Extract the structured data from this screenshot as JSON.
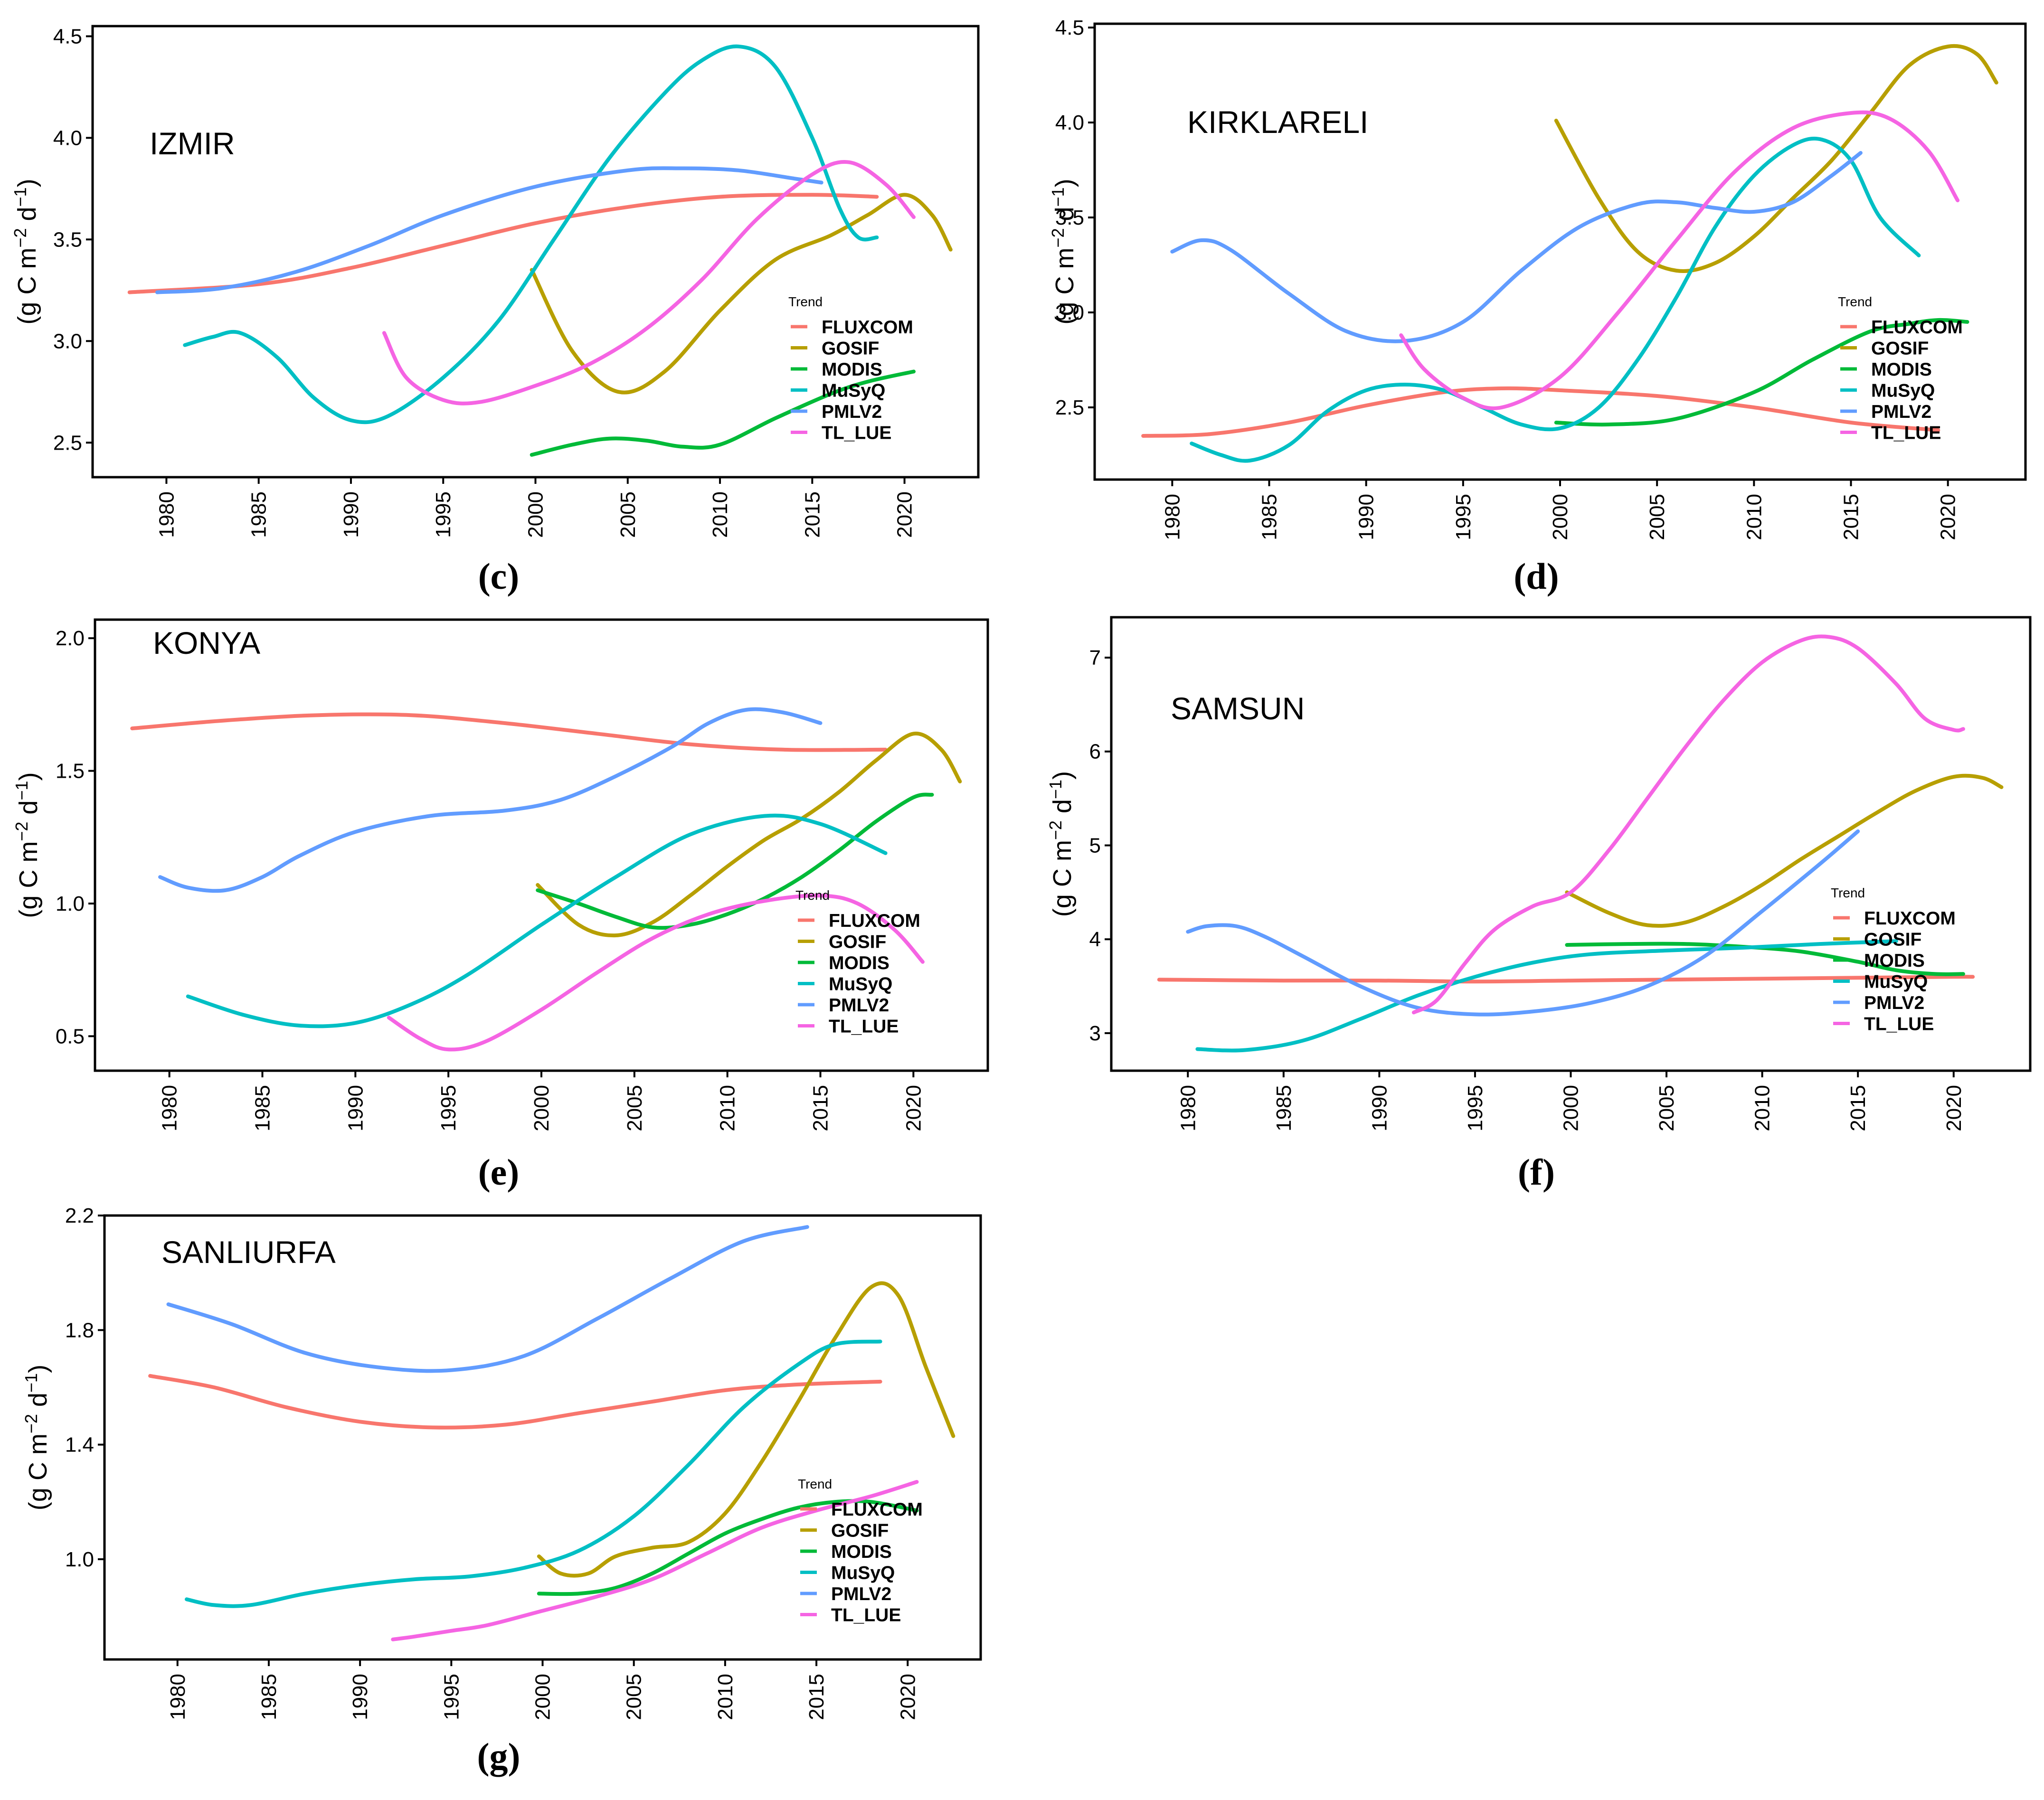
{
  "figure": {
    "ylabel_prefix": "(g C m",
    "ylabel_sup1": "−2",
    "ylabel_mid": " d",
    "ylabel_sup2": "−1",
    "ylabel_suffix": ")",
    "legend_title": "Trend"
  },
  "series_colors": {
    "FLUXCOM": "#F8766D",
    "GOSIF": "#B79F00",
    "MODIS": "#00BA38",
    "MuSyQ": "#00BFC4",
    "PMLV2": "#619CFF",
    "TL_LUE": "#F564E3"
  },
  "chart_data": [
    {
      "type": "line",
      "caption": "(c)",
      "title": "IZMIR",
      "xlim": [
        1976,
        2024
      ],
      "ylim": [
        2.33,
        4.55
      ],
      "xticks": [
        "1980",
        "1985",
        "1990",
        "1995",
        "2000",
        "2005",
        "2010",
        "2015",
        "2020"
      ],
      "yticks": [
        "2.5",
        "3.0",
        "3.5",
        "4.0",
        "4.5"
      ],
      "legend_position": "right-middle",
      "series": [
        {
          "name": "FLUXCOM",
          "x": [
            1978,
            1985,
            1990,
            1995,
            2000,
            2005,
            2010,
            2015,
            2018.5
          ],
          "y": [
            3.24,
            3.28,
            3.36,
            3.47,
            3.58,
            3.66,
            3.71,
            3.72,
            3.71
          ]
        },
        {
          "name": "GOSIF",
          "x": [
            1999.8,
            2002,
            2004.5,
            2007,
            2010,
            2013,
            2016,
            2018,
            2020,
            2021.5,
            2022.5
          ],
          "y": [
            3.35,
            2.95,
            2.75,
            2.85,
            3.15,
            3.4,
            3.52,
            3.62,
            3.72,
            3.62,
            3.45
          ]
        },
        {
          "name": "MODIS",
          "x": [
            1999.8,
            2002,
            2004,
            2006,
            2008,
            2010,
            2013,
            2016,
            2018,
            2020.5
          ],
          "y": [
            2.44,
            2.49,
            2.52,
            2.51,
            2.48,
            2.49,
            2.62,
            2.74,
            2.8,
            2.85
          ]
        },
        {
          "name": "MuSyQ",
          "x": [
            1981,
            1982.5,
            1984,
            1986,
            1988,
            1990,
            1992,
            1995,
            1998,
            2001,
            2004,
            2007,
            2009,
            2011,
            2013,
            2015,
            2016.5,
            2017.5,
            2018.5
          ],
          "y": [
            2.98,
            3.02,
            3.04,
            2.92,
            2.72,
            2.61,
            2.63,
            2.82,
            3.1,
            3.5,
            3.9,
            4.22,
            4.38,
            4.45,
            4.35,
            4.0,
            3.65,
            3.51,
            3.51
          ]
        },
        {
          "name": "PMLV2",
          "x": [
            1979.5,
            1983,
            1987,
            1991,
            1995,
            2000,
            2005,
            2008,
            2011,
            2014,
            2015.5
          ],
          "y": [
            3.24,
            3.26,
            3.34,
            3.47,
            3.62,
            3.76,
            3.84,
            3.85,
            3.84,
            3.8,
            3.78
          ]
        },
        {
          "name": "TL_LUE",
          "x": [
            1991.8,
            1993,
            1995,
            1997,
            2000,
            2003,
            2006,
            2009,
            2012,
            2015,
            2017,
            2019,
            2020.5
          ],
          "y": [
            3.04,
            2.82,
            2.71,
            2.7,
            2.78,
            2.89,
            3.06,
            3.3,
            3.6,
            3.82,
            3.88,
            3.77,
            3.61
          ]
        }
      ]
    },
    {
      "type": "line",
      "caption": "(d)",
      "title": "KIRKLARELI",
      "xlim": [
        1976,
        2024
      ],
      "ylim": [
        2.12,
        4.52
      ],
      "xticks": [
        "1980",
        "1985",
        "1990",
        "1995",
        "2000",
        "2005",
        "2010",
        "2015",
        "2020"
      ],
      "yticks": [
        "2.5",
        "3.0",
        "3.5",
        "4.0",
        "4.5"
      ],
      "legend_position": "right-middle",
      "series": [
        {
          "name": "FLUXCOM",
          "x": [
            1978.5,
            1982,
            1986,
            1990,
            1994,
            1997,
            2000,
            2005,
            2010,
            2015,
            2019.5
          ],
          "y": [
            2.35,
            2.36,
            2.42,
            2.51,
            2.58,
            2.6,
            2.59,
            2.56,
            2.5,
            2.42,
            2.38
          ]
        },
        {
          "name": "GOSIF",
          "x": [
            1999.8,
            2002,
            2004,
            2006,
            2008,
            2010,
            2012,
            2014,
            2016,
            2018,
            2020,
            2021.5,
            2022.5
          ],
          "y": [
            4.01,
            3.6,
            3.32,
            3.22,
            3.26,
            3.4,
            3.6,
            3.8,
            4.05,
            4.3,
            4.4,
            4.36,
            4.21
          ]
        },
        {
          "name": "MODIS",
          "x": [
            1999.8,
            2002.5,
            2006,
            2010,
            2013,
            2016,
            2018,
            2019.5,
            2021
          ],
          "y": [
            2.42,
            2.41,
            2.44,
            2.58,
            2.75,
            2.9,
            2.94,
            2.96,
            2.95
          ]
        },
        {
          "name": "MuSyQ",
          "x": [
            1981,
            1982.5,
            1984,
            1986,
            1988,
            1990,
            1992,
            1994,
            1996,
            1998,
            2000,
            2002,
            2004,
            2006,
            2008,
            2010,
            2012,
            2013.5,
            2015,
            2016.5,
            2018.5
          ],
          "y": [
            2.31,
            2.25,
            2.22,
            2.3,
            2.48,
            2.59,
            2.62,
            2.59,
            2.5,
            2.41,
            2.39,
            2.5,
            2.75,
            3.08,
            3.45,
            3.72,
            3.88,
            3.91,
            3.8,
            3.5,
            3.3
          ]
        },
        {
          "name": "PMLV2",
          "x": [
            1980,
            1981.5,
            1983,
            1986,
            1989,
            1992,
            1995,
            1998,
            2001,
            2004,
            2006,
            2008,
            2010,
            2012,
            2014,
            2015.5
          ],
          "y": [
            3.32,
            3.38,
            3.33,
            3.1,
            2.9,
            2.85,
            2.95,
            3.22,
            3.45,
            3.57,
            3.58,
            3.55,
            3.53,
            3.58,
            3.72,
            3.84
          ]
        },
        {
          "name": "TL_LUE",
          "x": [
            1991.8,
            1993,
            1995,
            1997,
            2000,
            2003,
            2006,
            2009,
            2012,
            2015,
            2017,
            2019,
            2020.5
          ],
          "y": [
            2.88,
            2.7,
            2.55,
            2.5,
            2.66,
            3.0,
            3.38,
            3.74,
            3.97,
            4.05,
            4.02,
            3.85,
            3.59
          ]
        }
      ]
    },
    {
      "type": "line",
      "caption": "(e)",
      "title": "KONYA",
      "xlim": [
        1976,
        2024
      ],
      "ylim": [
        0.37,
        2.07
      ],
      "xticks": [
        "1980",
        "1985",
        "1990",
        "1995",
        "2000",
        "2005",
        "2010",
        "2015",
        "2020"
      ],
      "yticks": [
        "0.5",
        "1.0",
        "1.5",
        "2.0"
      ],
      "legend_position": "right-middle",
      "series": [
        {
          "name": "FLUXCOM",
          "x": [
            1978,
            1983,
            1988,
            1993,
            1998,
            2003,
            2008,
            2013,
            2018.5
          ],
          "y": [
            1.66,
            1.69,
            1.71,
            1.71,
            1.68,
            1.64,
            1.6,
            1.58,
            1.58
          ]
        },
        {
          "name": "GOSIF",
          "x": [
            1999.8,
            2002,
            2004,
            2006,
            2008,
            2010,
            2012,
            2014,
            2016,
            2018,
            2020,
            2021.5,
            2022.5
          ],
          "y": [
            1.07,
            0.92,
            0.88,
            0.93,
            1.03,
            1.14,
            1.24,
            1.32,
            1.42,
            1.54,
            1.64,
            1.58,
            1.46
          ]
        },
        {
          "name": "MODIS",
          "x": [
            1999.8,
            2002,
            2004,
            2006,
            2008,
            2010,
            2012,
            2014,
            2016,
            2018,
            2020,
            2021
          ],
          "y": [
            1.05,
            1.0,
            0.95,
            0.91,
            0.92,
            0.96,
            1.02,
            1.1,
            1.2,
            1.31,
            1.4,
            1.41
          ]
        },
        {
          "name": "MuSyQ",
          "x": [
            1981,
            1984,
            1987,
            1990,
            1993,
            1996,
            2000,
            2004,
            2008,
            2012,
            2015,
            2018.5
          ],
          "y": [
            0.65,
            0.58,
            0.54,
            0.55,
            0.62,
            0.73,
            0.92,
            1.1,
            1.26,
            1.33,
            1.3,
            1.19
          ]
        },
        {
          "name": "PMLV2",
          "x": [
            1979.5,
            1981,
            1983,
            1985,
            1987,
            1990,
            1994,
            1998,
            2001,
            2004,
            2007,
            2009,
            2011,
            2013,
            2015
          ],
          "y": [
            1.1,
            1.06,
            1.05,
            1.1,
            1.18,
            1.27,
            1.33,
            1.35,
            1.39,
            1.48,
            1.59,
            1.68,
            1.73,
            1.72,
            1.68
          ]
        },
        {
          "name": "TL_LUE",
          "x": [
            1991.8,
            1993.5,
            1995,
            1997,
            2000,
            2003,
            2006,
            2009,
            2012,
            2015,
            2017,
            2019,
            2020.5
          ],
          "y": [
            0.57,
            0.49,
            0.45,
            0.48,
            0.6,
            0.74,
            0.87,
            0.96,
            1.01,
            1.03,
            1.0,
            0.9,
            0.78
          ]
        }
      ]
    },
    {
      "type": "line",
      "caption": "(f)",
      "title": "SAMSUN",
      "xlim": [
        1976,
        2024
      ],
      "ylim": [
        2.6,
        7.43
      ],
      "xticks": [
        "1980",
        "1985",
        "1990",
        "1995",
        "2000",
        "2005",
        "2010",
        "2015",
        "2020"
      ],
      "yticks": [
        "3",
        "4",
        "5",
        "6",
        "7"
      ],
      "legend_position": "right-middle",
      "series": [
        {
          "name": "FLUXCOM",
          "x": [
            1978.5,
            1985,
            1990,
            1995,
            2000,
            2005,
            2010,
            2015,
            2020,
            2021
          ],
          "y": [
            3.57,
            3.56,
            3.56,
            3.55,
            3.56,
            3.57,
            3.58,
            3.59,
            3.6,
            3.6
          ]
        },
        {
          "name": "GOSIF",
          "x": [
            1999.8,
            2002,
            2004,
            2006,
            2008,
            2010,
            2012,
            2014,
            2016,
            2018,
            2020,
            2021.5,
            2022.5
          ],
          "y": [
            4.5,
            4.28,
            4.15,
            4.18,
            4.35,
            4.58,
            4.85,
            5.1,
            5.35,
            5.58,
            5.73,
            5.72,
            5.62
          ]
        },
        {
          "name": "MODIS",
          "x": [
            1999.8,
            2003,
            2006,
            2009,
            2012,
            2015,
            2017,
            2019,
            2020.5
          ],
          "y": [
            3.94,
            3.95,
            3.95,
            3.92,
            3.87,
            3.76,
            3.67,
            3.63,
            3.63
          ]
        },
        {
          "name": "MuSyQ",
          "x": [
            1980.5,
            1983,
            1986,
            1989,
            1992,
            1995,
            1998,
            2001,
            2005,
            2009,
            2013,
            2017
          ],
          "y": [
            2.83,
            2.82,
            2.92,
            3.15,
            3.4,
            3.6,
            3.75,
            3.84,
            3.88,
            3.91,
            3.95,
            3.98
          ]
        },
        {
          "name": "PMLV2",
          "x": [
            1980,
            1981,
            1982.5,
            1984,
            1986,
            1989,
            1992,
            1995,
            1998,
            2001,
            2004,
            2007,
            2010,
            2013,
            2015
          ],
          "y": [
            4.08,
            4.14,
            4.14,
            4.03,
            3.82,
            3.5,
            3.27,
            3.2,
            3.23,
            3.32,
            3.5,
            3.82,
            4.3,
            4.8,
            5.15
          ]
        },
        {
          "name": "TL_LUE",
          "x": [
            1991.8,
            1993,
            1994.5,
            1996,
            1998,
            2000,
            2002,
            2004,
            2006,
            2008,
            2010,
            2012,
            2013.5,
            2015,
            2017,
            2018.5,
            2020,
            2020.5
          ],
          "y": [
            3.22,
            3.35,
            3.75,
            4.1,
            4.35,
            4.5,
            4.95,
            5.5,
            6.05,
            6.55,
            6.95,
            7.18,
            7.22,
            7.1,
            6.72,
            6.35,
            6.23,
            6.24
          ]
        }
      ]
    },
    {
      "type": "line",
      "caption": "(g)",
      "title": "SANLIURFA",
      "xlim": [
        1976,
        2024
      ],
      "ylim": [
        0.65,
        2.2
      ],
      "xticks": [
        "1980",
        "1985",
        "1990",
        "1995",
        "2000",
        "2005",
        "2010",
        "2015",
        "2020"
      ],
      "yticks": [
        "1.0",
        "1.4",
        "1.8",
        "2.2"
      ],
      "legend_position": "right-middle",
      "series": [
        {
          "name": "FLUXCOM",
          "x": [
            1978.5,
            1982,
            1986,
            1990,
            1994,
            1998,
            2002,
            2006,
            2010,
            2014,
            2018.5
          ],
          "y": [
            1.64,
            1.6,
            1.53,
            1.48,
            1.46,
            1.47,
            1.51,
            1.55,
            1.59,
            1.61,
            1.62
          ]
        },
        {
          "name": "GOSIF",
          "x": [
            1999.8,
            2001,
            2002.5,
            2004,
            2006,
            2008,
            2010,
            2012,
            2014,
            2016,
            2018,
            2019.5,
            2021,
            2022.5
          ],
          "y": [
            1.01,
            0.95,
            0.95,
            1.01,
            1.04,
            1.06,
            1.16,
            1.34,
            1.55,
            1.77,
            1.95,
            1.92,
            1.67,
            1.43
          ]
        },
        {
          "name": "MODIS",
          "x": [
            1999.8,
            2002,
            2004,
            2006,
            2008,
            2010,
            2012,
            2014,
            2016,
            2018,
            2020.5
          ],
          "y": [
            0.88,
            0.88,
            0.9,
            0.95,
            1.02,
            1.09,
            1.14,
            1.18,
            1.2,
            1.2,
            1.17
          ]
        },
        {
          "name": "MuSyQ",
          "x": [
            1980.5,
            1982,
            1984,
            1987,
            1990,
            1993,
            1996,
            1999,
            2002,
            2005,
            2008,
            2011,
            2014,
            2016,
            2018.5
          ],
          "y": [
            0.86,
            0.84,
            0.84,
            0.88,
            0.91,
            0.93,
            0.94,
            0.97,
            1.03,
            1.15,
            1.33,
            1.53,
            1.68,
            1.75,
            1.76
          ]
        },
        {
          "name": "PMLV2",
          "x": [
            1979.5,
            1983,
            1987,
            1991,
            1995,
            1999,
            2003,
            2007,
            2011,
            2014.5
          ],
          "y": [
            1.89,
            1.82,
            1.72,
            1.67,
            1.66,
            1.71,
            1.84,
            1.98,
            2.11,
            2.16
          ]
        },
        {
          "name": "TL_LUE",
          "x": [
            1991.8,
            1993,
            1995,
            1997,
            2000,
            2003,
            2006,
            2009,
            2012,
            2015,
            2018,
            2020.5
          ],
          "y": [
            0.72,
            0.73,
            0.75,
            0.77,
            0.82,
            0.87,
            0.93,
            1.02,
            1.11,
            1.17,
            1.22,
            1.27
          ]
        }
      ]
    }
  ]
}
